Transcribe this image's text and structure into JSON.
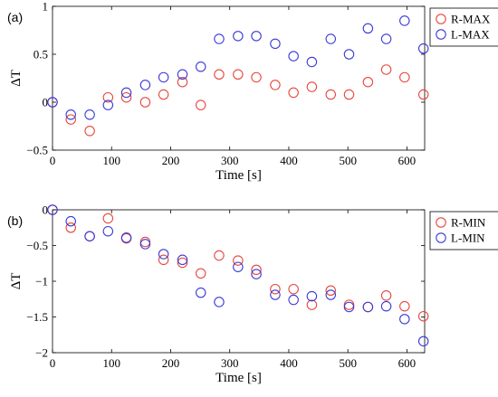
{
  "colors": {
    "red": "#e8463c",
    "blue": "#3a3ad6",
    "axis": "#000000"
  },
  "chart_data": [
    {
      "type": "scatter",
      "panel_label": "(a)",
      "xlabel": "Time [s]",
      "ylabel": "ΔT",
      "xlim": [
        0,
        630
      ],
      "ylim": [
        -0.5,
        1
      ],
      "xticks": [
        0,
        100,
        200,
        300,
        400,
        500,
        600
      ],
      "yticks": [
        -0.5,
        0,
        0.5,
        1
      ],
      "ytick_labels": [
        "−0.5",
        "0",
        "0.5",
        "1"
      ],
      "legend_position": "top-right",
      "series": [
        {
          "name": "R-MAX",
          "color": "red",
          "x": [
            0,
            31,
            63,
            94,
            125,
            157,
            188,
            220,
            251,
            282,
            314,
            345,
            377,
            408,
            439,
            471,
            502,
            534,
            565,
            596,
            628
          ],
          "y": [
            0,
            -0.18,
            -0.3,
            0.05,
            0.05,
            0.0,
            0.08,
            0.21,
            -0.03,
            0.29,
            0.29,
            0.26,
            0.18,
            0.1,
            0.16,
            0.08,
            0.08,
            0.21,
            0.34,
            0.26,
            0.08
          ]
        },
        {
          "name": "L-MAX",
          "color": "blue",
          "x": [
            0,
            31,
            63,
            94,
            125,
            157,
            188,
            220,
            251,
            282,
            314,
            345,
            377,
            408,
            439,
            471,
            502,
            534,
            565,
            596,
            628
          ],
          "y": [
            0,
            -0.13,
            -0.13,
            -0.03,
            0.1,
            0.18,
            0.26,
            0.29,
            0.37,
            0.66,
            0.69,
            0.69,
            0.61,
            0.48,
            0.42,
            0.66,
            0.5,
            0.77,
            0.66,
            0.85,
            0.56
          ]
        }
      ]
    },
    {
      "type": "scatter",
      "panel_label": "(b)",
      "xlabel": "Time [s]",
      "ylabel": "ΔT",
      "xlim": [
        0,
        630
      ],
      "ylim": [
        -2,
        0
      ],
      "xticks": [
        0,
        100,
        200,
        300,
        400,
        500,
        600
      ],
      "yticks": [
        -2,
        -1.5,
        -1,
        -0.5,
        0
      ],
      "ytick_labels": [
        "−2",
        "−1.5",
        "−1",
        "−0.5",
        "0"
      ],
      "legend_position": "top-right",
      "series": [
        {
          "name": "R-MIN",
          "color": "red",
          "x": [
            0,
            31,
            63,
            94,
            125,
            157,
            188,
            220,
            251,
            282,
            314,
            345,
            377,
            408,
            439,
            471,
            502,
            534,
            565,
            596,
            628
          ],
          "y": [
            0,
            -0.25,
            -0.37,
            -0.12,
            -0.4,
            -0.45,
            -0.7,
            -0.74,
            -0.89,
            -0.64,
            -0.71,
            -0.84,
            -1.11,
            -1.11,
            -1.33,
            -1.13,
            -1.33,
            -1.36,
            -1.2,
            -1.35,
            -1.49
          ]
        },
        {
          "name": "L-MIN",
          "color": "blue",
          "x": [
            0,
            31,
            63,
            94,
            125,
            157,
            188,
            220,
            251,
            282,
            314,
            345,
            377,
            408,
            439,
            471,
            502,
            534,
            565,
            596,
            628
          ],
          "y": [
            0,
            -0.16,
            -0.37,
            -0.3,
            -0.39,
            -0.48,
            -0.62,
            -0.7,
            -1.16,
            -1.29,
            -0.8,
            -0.9,
            -1.19,
            -1.26,
            -1.21,
            -1.19,
            -1.36,
            -1.36,
            -1.35,
            -1.53,
            -1.84
          ]
        }
      ]
    }
  ]
}
